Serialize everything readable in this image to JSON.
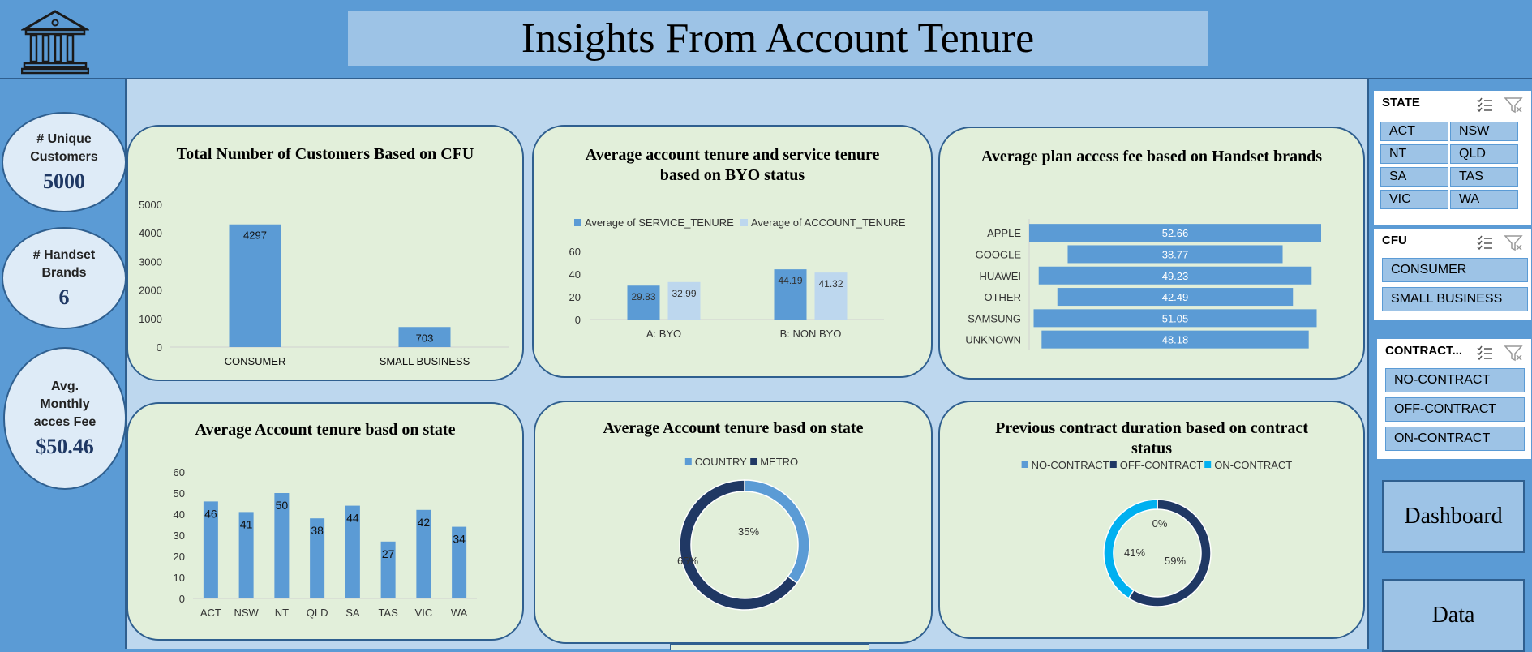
{
  "header": {
    "title": "Insights From Account Tenure"
  },
  "kpis": [
    {
      "label": "# Unique Customers",
      "value": "5000"
    },
    {
      "label": "# Handset Brands",
      "value": "6"
    },
    {
      "label": "Avg. Monthly acces Fee",
      "value": "$50.46"
    }
  ],
  "slicers": {
    "state": {
      "title": "STATE",
      "items": [
        "ACT",
        "NSW",
        "NT",
        "QLD",
        "SA",
        "TAS",
        "VIC",
        "WA"
      ]
    },
    "cfu": {
      "title": "CFU",
      "items": [
        "CONSUMER",
        "SMALL BUSINESS"
      ]
    },
    "contract": {
      "title": "CONTRACT...",
      "items": [
        "NO-CONTRACT",
        "OFF-CONTRACT",
        "ON-CONTRACT"
      ]
    }
  },
  "nav": {
    "dashboard": "Dashboard",
    "data": "Data"
  },
  "colors": {
    "primary": "#5b9bd5",
    "light": "#bdd7ee",
    "card": "#e2efda",
    "dark": "#203864",
    "cyan": "#00b0f0"
  },
  "chart_data": [
    {
      "type": "bar",
      "title": "Total Number of Customers Based on CFU",
      "categories": [
        "CONSUMER",
        "SMALL BUSINESS"
      ],
      "values": [
        4297,
        703
      ],
      "ylim": [
        0,
        5000
      ],
      "yticks": [
        0,
        1000,
        2000,
        3000,
        4000,
        5000
      ]
    },
    {
      "type": "bar",
      "title": "Average account tenure and service tenure based on BYO status",
      "categories": [
        "A: BYO",
        "B: NON BYO"
      ],
      "series": [
        {
          "name": "Average of SERVICE_TENURE",
          "values": [
            29.83,
            44.19
          ],
          "color": "#5b9bd5"
        },
        {
          "name": "Average of ACCOUNT_TENURE",
          "values": [
            32.99,
            41.32
          ],
          "color": "#bdd7ee"
        }
      ],
      "ylim": [
        0,
        60
      ],
      "yticks": [
        0,
        20,
        40,
        60
      ],
      "legend": "top"
    },
    {
      "type": "bar",
      "orientation": "horizontal",
      "title": "Average plan access fee  based on Handset brands",
      "categories": [
        "APPLE",
        "GOOGLE",
        "HUAWEI",
        "OTHER",
        "SAMSUNG",
        "UNKNOWN"
      ],
      "values": [
        52.66,
        38.77,
        49.23,
        42.49,
        51.05,
        48.18
      ]
    },
    {
      "type": "bar",
      "title": "Average Account tenure basd on state",
      "categories": [
        "ACT",
        "NSW",
        "NT",
        "QLD",
        "SA",
        "TAS",
        "VIC",
        "WA"
      ],
      "values": [
        46,
        41,
        50,
        38,
        44,
        27,
        42,
        34
      ],
      "ylim": [
        0,
        60
      ],
      "yticks": [
        0,
        10,
        20,
        30,
        40,
        50,
        60
      ]
    },
    {
      "type": "pie",
      "donut": true,
      "title": "Average Account tenure basd on state",
      "categories": [
        "COUNTRY",
        "METRO"
      ],
      "values": [
        35,
        65
      ],
      "labels": [
        "35%",
        "65%"
      ],
      "colors": [
        "#5b9bd5",
        "#203864"
      ],
      "legend": "top"
    },
    {
      "type": "pie",
      "donut": true,
      "title": "Previous contract duration based on contract status",
      "categories": [
        "NO-CONTRACT",
        "OFF-CONTRACT",
        "ON-CONTRACT"
      ],
      "values": [
        0,
        59,
        41
      ],
      "labels": [
        "0%",
        "59%",
        "41%"
      ],
      "colors": [
        "#5b9bd5",
        "#203864",
        "#00b0f0"
      ],
      "legend": "top"
    }
  ]
}
